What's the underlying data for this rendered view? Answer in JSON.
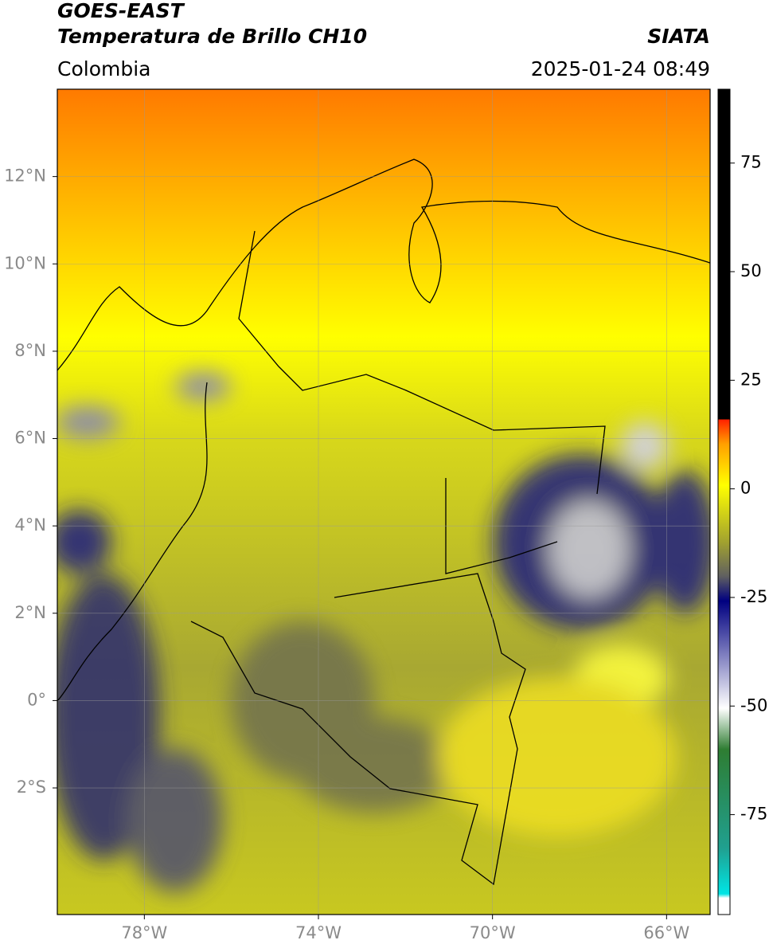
{
  "header": {
    "title": "GOES-EAST",
    "subtitle": "Temperatura de Brillo CH10",
    "source": "SIATA",
    "region": "Colombia",
    "datetime": "2025-01-24 08:49"
  },
  "map": {
    "xlim": [
      -80,
      -65
    ],
    "ylim": [
      -4.9,
      14
    ],
    "xticks": [
      {
        "value": -78,
        "label": "78°W"
      },
      {
        "value": -74,
        "label": "74°W"
      },
      {
        "value": -70,
        "label": "70°W"
      },
      {
        "value": -66,
        "label": "66°W"
      }
    ],
    "yticks": [
      {
        "value": 12,
        "label": "12°N"
      },
      {
        "value": 10,
        "label": "10°N"
      },
      {
        "value": 8,
        "label": "8°N"
      },
      {
        "value": 6,
        "label": "6°N"
      },
      {
        "value": 4,
        "label": "4°N"
      },
      {
        "value": 2,
        "label": "2°N"
      },
      {
        "value": 0,
        "label": "0°"
      },
      {
        "value": -2,
        "label": "2°S"
      }
    ]
  },
  "colorbar": {
    "lim": [
      -98,
      92
    ],
    "ticks": [
      75,
      50,
      25,
      0,
      -25,
      -50,
      -75
    ]
  }
}
